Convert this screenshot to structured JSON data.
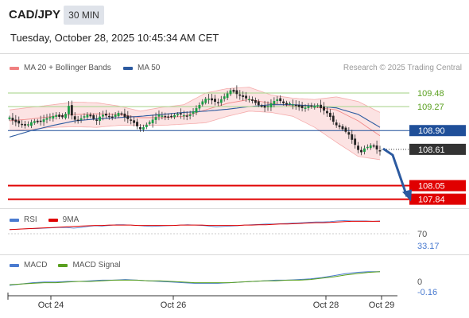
{
  "header": {
    "symbol": "CAD/JPY",
    "timeframe": "30 MIN",
    "datetime": "Tuesday, October 28, 2025 10:45:34 AM CET"
  },
  "legend": {
    "ma20_label": "MA 20 + Bollinger Bands",
    "ma50_label": "MA 50",
    "research": "Research © 2025 Trading Central"
  },
  "colors": {
    "candle_up": "#1a9e45",
    "candle_down": "#222222",
    "bollinger": "#f08080",
    "ma50": "#2c5aa0",
    "resistance": "#b5d99c",
    "support": "#e00000",
    "pivot": "#1f4f99",
    "arrow": "#2c5aa0",
    "rsi": "#4a7bd0",
    "rsi_ma": "#e00000",
    "macd": "#4a7bd0",
    "macd_signal": "#5aa020"
  },
  "chart_data": [
    {
      "type": "candlestick",
      "name": "price",
      "y_range": [
        107.7,
        109.75
      ],
      "levels": [
        {
          "value": 109.48,
          "label": "109.48",
          "kind": "resistance"
        },
        {
          "value": 109.27,
          "label": "109.27",
          "kind": "resistance"
        },
        {
          "value": 108.9,
          "label": "108.90",
          "kind": "pivot"
        },
        {
          "value": 108.61,
          "label": "108.61",
          "kind": "last"
        },
        {
          "value": 108.05,
          "label": "108.05",
          "kind": "support"
        },
        {
          "value": 107.84,
          "label": "107.84",
          "kind": "support"
        }
      ],
      "price_path": [
        109.1,
        109.05,
        109.02,
        109.0,
        108.98,
        109.0,
        109.05,
        109.03,
        109.05,
        109.08,
        109.1,
        109.12,
        109.14,
        109.1,
        109.12,
        109.28,
        109.1,
        109.05,
        109.08,
        109.12,
        109.15,
        109.1,
        109.05,
        109.12,
        109.15,
        109.12,
        109.1,
        109.15,
        109.18,
        109.12,
        109.08,
        109.05,
        109.0,
        108.92,
        108.95,
        109.0,
        109.05,
        109.1,
        109.15,
        109.12,
        109.1,
        109.12,
        109.14,
        109.16,
        109.14,
        109.12,
        109.15,
        109.22,
        109.28,
        109.35,
        109.4,
        109.38,
        109.35,
        109.33,
        109.4,
        109.45,
        109.52,
        109.5,
        109.45,
        109.43,
        109.4,
        109.38,
        109.35,
        109.3,
        109.28,
        109.25,
        109.3,
        109.35,
        109.38,
        109.35,
        109.3,
        109.32,
        109.3,
        109.28,
        109.25,
        109.25,
        109.28,
        109.27,
        109.3,
        109.25,
        109.2,
        109.15,
        109.05,
        108.98,
        108.95,
        108.9,
        108.85,
        108.75,
        108.65,
        108.55,
        108.62,
        108.65,
        108.68,
        108.62,
        108.58
      ],
      "ma20_path": [
        109.05,
        109.08,
        109.12,
        109.15,
        109.16,
        109.15,
        109.1,
        109.1,
        109.12,
        109.22,
        109.32,
        109.38,
        109.32,
        109.28,
        109.26,
        109.22,
        109.05,
        108.82
      ],
      "bollinger_upper": [
        109.22,
        109.26,
        109.3,
        109.34,
        109.33,
        109.28,
        109.2,
        109.26,
        109.3,
        109.48,
        109.55,
        109.57,
        109.45,
        109.4,
        109.38,
        109.42,
        109.35,
        109.18
      ],
      "bollinger_lower": [
        108.9,
        108.92,
        108.95,
        108.96,
        108.95,
        108.98,
        108.98,
        108.98,
        109.0,
        109.02,
        109.12,
        109.2,
        109.18,
        109.12,
        108.95,
        108.72,
        108.5,
        108.45
      ],
      "ma50_path": [
        108.8,
        108.9,
        108.98,
        109.05,
        109.08,
        109.1,
        109.12,
        109.15,
        109.18,
        109.2,
        109.23,
        109.27,
        109.3,
        109.3,
        109.28,
        109.25,
        109.15,
        108.95
      ],
      "forecast_arrow": {
        "from": 108.62,
        "to": 107.88
      }
    },
    {
      "type": "line",
      "name": "rsi",
      "legend": [
        "RSI",
        "9MA"
      ],
      "tick_labels": [
        "70",
        "33.17"
      ],
      "series": [
        {
          "name": "RSI",
          "values": [
            58,
            57,
            56,
            55,
            55,
            54,
            53,
            52,
            52,
            54,
            52,
            49,
            47,
            48,
            46,
            44,
            44,
            45,
            46,
            48,
            49,
            48,
            47,
            46,
            45,
            44,
            45,
            46,
            48,
            50,
            49,
            48,
            47,
            45,
            44,
            43,
            42,
            42,
            41,
            40,
            39,
            38,
            37,
            36,
            36,
            35,
            33,
            32,
            33,
            33,
            33,
            34,
            33
          ]
        },
        {
          "name": "9MA",
          "values": [
            58,
            57,
            56,
            55,
            54,
            53,
            52,
            51,
            50,
            49,
            48,
            47,
            46,
            46,
            45,
            45,
            45,
            45,
            46,
            46,
            46,
            46,
            46,
            46,
            45,
            45,
            45,
            45,
            46,
            46,
            46,
            46,
            46,
            45,
            45,
            44,
            44,
            43,
            42,
            42,
            41,
            40,
            39,
            38,
            38,
            37,
            36,
            35,
            34,
            34,
            34,
            34,
            34
          ]
        }
      ]
    },
    {
      "type": "line",
      "name": "macd",
      "legend": [
        "MACD",
        "MACD Signal"
      ],
      "tick_labels": [
        "0",
        "-0.16"
      ],
      "series": [
        {
          "name": "MACD",
          "values": [
            0.06,
            0.04,
            0.02,
            0.01,
            0.01,
            0.0,
            0.0,
            -0.01,
            -0.02,
            -0.02,
            -0.03,
            -0.02,
            -0.01,
            0.0,
            0.01,
            0.02,
            0.03,
            0.03,
            0.03,
            0.02,
            0.01,
            0.0,
            -0.01,
            -0.02,
            -0.02,
            -0.03,
            -0.04,
            -0.06,
            -0.09,
            -0.12,
            -0.14,
            -0.15,
            -0.15
          ]
        },
        {
          "name": "MACD Signal",
          "values": [
            0.05,
            0.04,
            0.03,
            0.02,
            0.02,
            0.01,
            0.0,
            0.0,
            -0.01,
            -0.02,
            -0.02,
            -0.02,
            -0.01,
            -0.01,
            0.0,
            0.01,
            0.02,
            0.02,
            0.02,
            0.02,
            0.01,
            0.0,
            -0.01,
            -0.01,
            -0.02,
            -0.02,
            -0.03,
            -0.05,
            -0.07,
            -0.1,
            -0.12,
            -0.14,
            -0.15
          ]
        }
      ]
    }
  ],
  "x_axis": {
    "ticks": [
      "Oct 24",
      "Oct 26",
      "Oct 28",
      "Oct 29"
    ]
  }
}
